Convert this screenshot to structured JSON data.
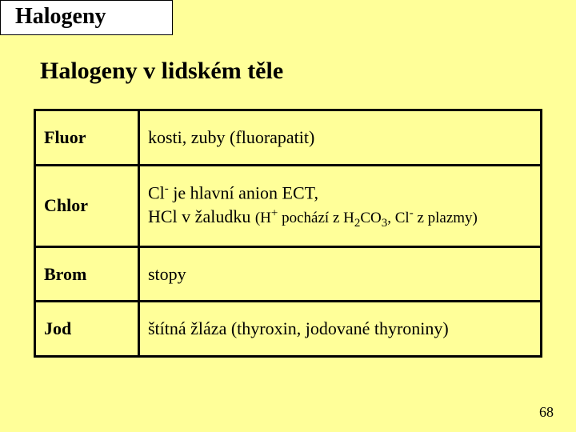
{
  "header": {
    "title": "Halogeny"
  },
  "subtitle": "Halogeny v lidském těle",
  "table": {
    "rows": [
      {
        "label": "Fluor",
        "desc_html": "kosti, zuby (fluorapatit)"
      },
      {
        "label": "Chlor",
        "desc_html": "Cl<sup class='smallsup'>-</sup> je hlavní anion ECT,<br>HCl v žaludku <span class='smaller'>(H<sup class='smallsup'>+</sup> pochází z H<sub class='smallsub'>2</sub>CO<sub class='smallsub'>3</sub>, Cl<sup class='smallsup'>-</sup> z plazmy)</span>"
      },
      {
        "label": "Brom",
        "desc_html": "stopy"
      },
      {
        "label": "Jod",
        "desc_html": "štítná žláza (thyroxin, jodované thyroniny)"
      }
    ]
  },
  "page_number": "68"
}
